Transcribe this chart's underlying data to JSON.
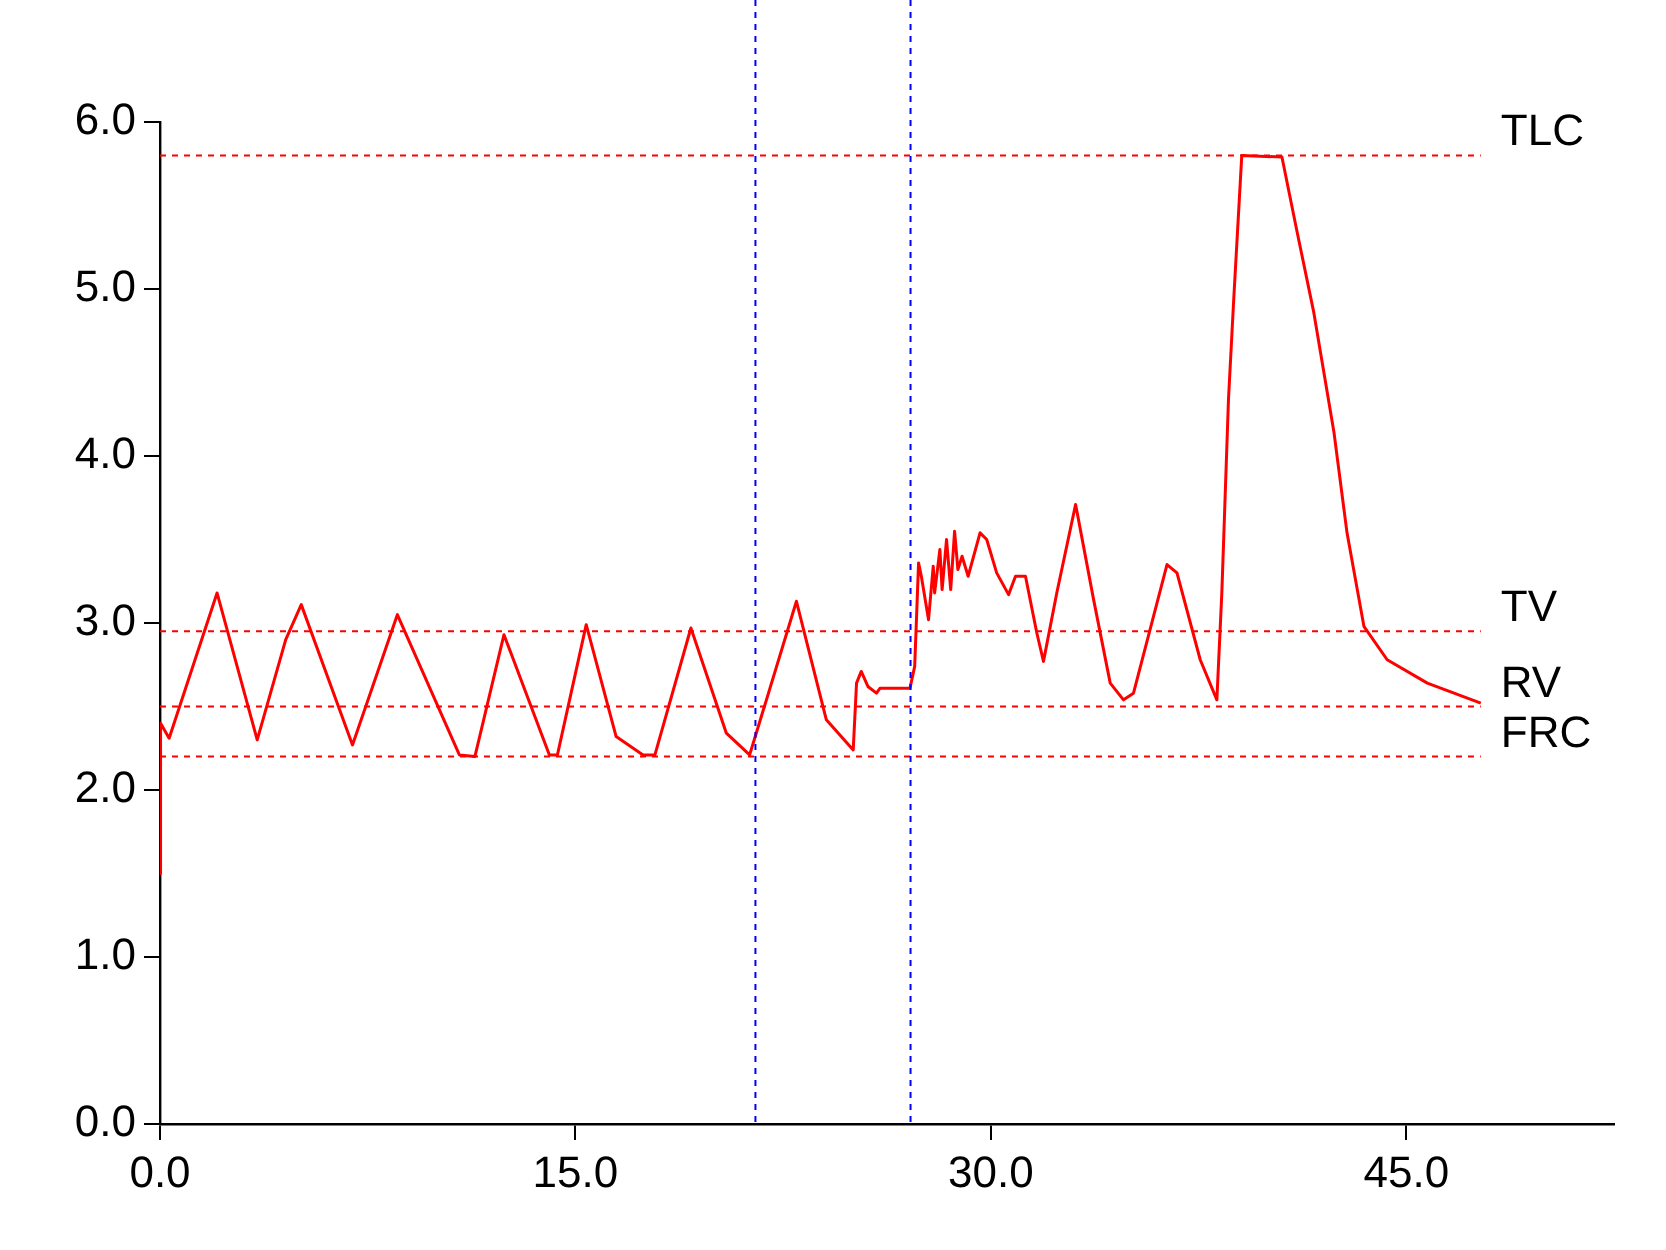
{
  "chart_data": {
    "type": "line",
    "x": [
      0,
      0.02,
      0.33,
      2.06,
      3.51,
      4.54,
      5.1,
      6.95,
      8.57,
      10.81,
      11.37,
      12.42,
      14.06,
      14.35,
      15.39,
      16.47,
      17.44,
      17.87,
      19.17,
      20.45,
      21.29,
      22.98,
      24.06,
      25.03,
      25.15,
      25.32,
      25.56,
      25.87,
      26.0,
      27.08,
      27.25,
      27.39,
      27.49,
      27.75,
      27.92,
      27.97,
      28.16,
      28.24,
      28.4,
      28.55,
      28.69,
      28.81,
      28.96,
      29.18,
      29.61,
      29.85,
      30.21,
      30.64,
      30.89,
      31.25,
      31.66,
      31.9,
      32.38,
      33.06,
      33.71,
      34.31,
      34.79,
      35.15,
      36.36,
      36.72,
      37.56,
      38.16,
      38.34,
      38.58,
      38.77,
      39.06,
      40.51,
      41.06,
      41.66,
      42.39,
      42.86,
      43.47,
      44.31,
      45.76,
      47.69
    ],
    "series": [
      {
        "color": "#ff0000",
        "values": [
          1.5,
          2.4,
          2.31,
          3.18,
          2.3,
          2.9,
          3.11,
          2.27,
          3.05,
          2.21,
          2.2,
          2.93,
          2.21,
          2.21,
          2.99,
          2.32,
          2.21,
          2.21,
          2.97,
          2.34,
          2.21,
          3.13,
          2.42,
          2.24,
          2.64,
          2.71,
          2.62,
          2.58,
          2.61,
          2.61,
          2.74,
          3.36,
          3.28,
          3.02,
          3.34,
          3.18,
          3.44,
          3.2,
          3.5,
          3.2,
          3.55,
          3.32,
          3.4,
          3.28,
          3.54,
          3.5,
          3.3,
          3.17,
          3.28,
          3.28,
          2.94,
          2.77,
          3.18,
          3.71,
          3.14,
          2.64,
          2.54,
          2.58,
          3.35,
          3.3,
          2.78,
          2.54,
          3.18,
          4.34,
          4.94,
          5.8,
          5.79,
          5.34,
          4.86,
          4.14,
          3.54,
          2.98,
          2.78,
          2.64,
          2.52
        ]
      }
    ],
    "xlim": [
      0,
      52.5
    ],
    "xticks": [
      {
        "value": 0,
        "label": "0.0"
      },
      {
        "value": 15,
        "label": "15.0"
      },
      {
        "value": 30,
        "label": "30.0"
      },
      {
        "value": 45,
        "label": "45.0"
      }
    ],
    "ylim": [
      0,
      6
    ],
    "yticks": [
      {
        "value": 0,
        "label": "0.0"
      },
      {
        "value": 1,
        "label": "1.0"
      },
      {
        "value": 2,
        "label": "2.0"
      },
      {
        "value": 3,
        "label": "3.0"
      },
      {
        "value": 4,
        "label": "4.0"
      },
      {
        "value": 5,
        "label": "5.0"
      },
      {
        "value": 6,
        "label": "6.0"
      }
    ],
    "ref_lines": [
      {
        "axis": "y",
        "value": 5.8,
        "label": "TLC",
        "color": "#ff0000",
        "line_style": "dotted"
      },
      {
        "axis": "y",
        "value": 2.95,
        "label": "TV",
        "color": "#ff0000",
        "line_style": "dotted"
      },
      {
        "axis": "y",
        "value": 2.5,
        "label": "RV",
        "color": "#ff0000",
        "line_style": "dotted"
      },
      {
        "axis": "y",
        "value": 2.2,
        "label": "FRC",
        "color": "#ff0000",
        "line_style": "dotted"
      },
      {
        "axis": "x",
        "value": 21.5,
        "color": "#0000ff",
        "line_style": "dotted"
      },
      {
        "axis": "x",
        "value": 27.1,
        "color": "#0000ff",
        "line_style": "dotted"
      }
    ],
    "grid": false,
    "legend": false,
    "marker": "none",
    "line_style": "solid"
  }
}
